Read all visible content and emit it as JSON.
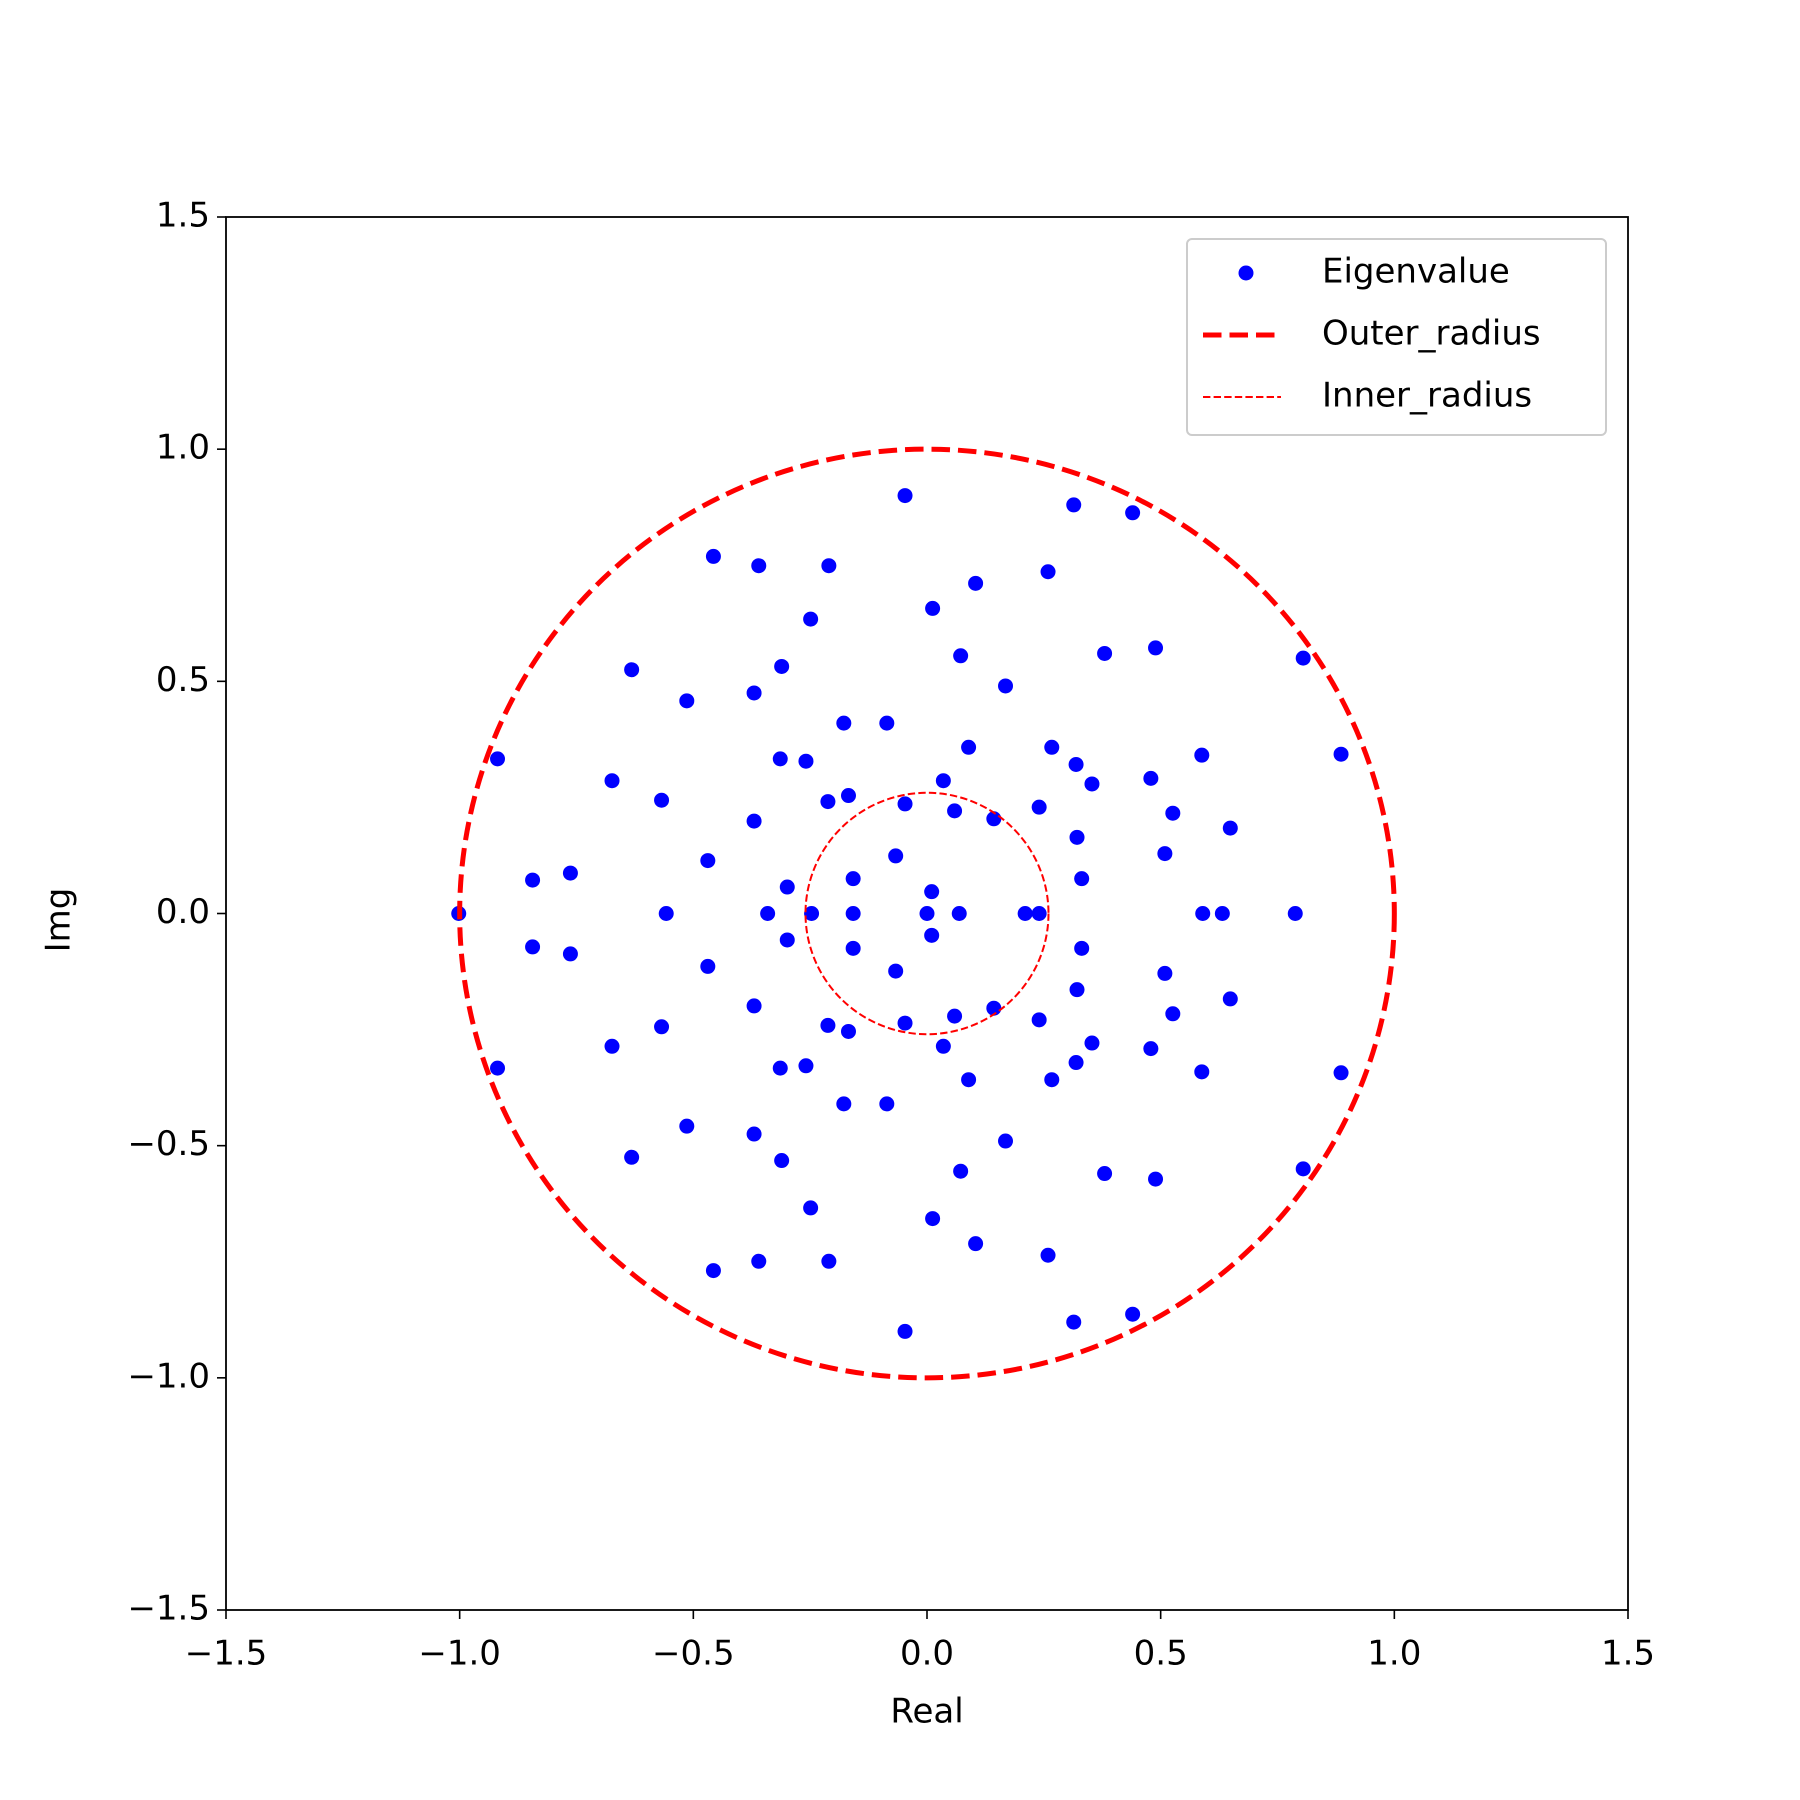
{
  "chart_data": {
    "type": "scatter",
    "xlabel": "Real",
    "ylabel": "Img",
    "xlim": [
      -1.5,
      1.5
    ],
    "ylim": [
      -1.5,
      1.5
    ],
    "xticks": [
      {
        "value": -1.5,
        "label": "−1.5"
      },
      {
        "value": -1.0,
        "label": "−1.0"
      },
      {
        "value": -0.5,
        "label": "−0.5"
      },
      {
        "value": 0,
        "label": "0.0"
      },
      0.5,
      {
        "value": 1,
        "label": "1.0"
      },
      1.5
    ],
    "yticks": [
      {
        "value": -1.5,
        "label": "−1.5"
      },
      {
        "value": -1.0,
        "label": "−1.0"
      },
      {
        "value": -0.5,
        "label": "−0.5"
      },
      {
        "value": 0,
        "label": "0.0"
      },
      0.5,
      {
        "value": 1,
        "label": "1.0"
      },
      1.5
    ],
    "legend": "upper right",
    "series": [
      {
        "name": "Eigenvalue",
        "color": "#0000ff",
        "marker": "dot",
        "x": [
          -0.047,
          0.314,
          0.44,
          -0.457,
          -0.36,
          -0.21,
          0.259,
          0.104,
          0.012,
          -0.249,
          0.072,
          0.38,
          0.489,
          0.805,
          -0.632,
          -0.311,
          0.168,
          -0.514,
          -0.37,
          -0.178,
          -0.086,
          0.089,
          0.886,
          -0.919,
          -0.314,
          -0.259,
          0.267,
          0.319,
          0.588,
          0.353,
          0.479,
          0.035,
          -0.674,
          -0.568,
          -0.212,
          -0.168,
          -0.047,
          0.24,
          0.059,
          0.526,
          0.143,
          0.649,
          -0.37,
          0.321,
          0.509,
          -0.067,
          -0.469,
          -0.763,
          -0.844,
          -0.158,
          0.331,
          -0.299,
          0.01,
          -0.047,
          0.314,
          0.44,
          -0.457,
          -0.36,
          -0.21,
          0.259,
          0.104,
          0.012,
          -0.249,
          0.072,
          0.38,
          0.489,
          0.805,
          -0.632,
          -0.311,
          0.168,
          -0.514,
          -0.37,
          -0.178,
          -0.086,
          0.089,
          0.886,
          -0.919,
          -0.314,
          -0.259,
          0.267,
          0.319,
          0.588,
          0.353,
          0.479,
          0.035,
          -0.674,
          -0.568,
          -0.212,
          -0.168,
          -0.047,
          0.24,
          0.059,
          0.526,
          0.143,
          0.649,
          -0.37,
          0.321,
          0.509,
          -0.067,
          -0.469,
          -0.763,
          -0.844,
          -0.158,
          0.331,
          -0.299,
          0.01,
          -1.002,
          -0.558,
          -0.341,
          -0.247,
          -0.158,
          0,
          0.069,
          0.21,
          0.24,
          0.59,
          0.632,
          0.788
        ],
        "y": [
          0.9,
          0.88,
          0.863,
          0.769,
          0.749,
          0.749,
          0.736,
          0.711,
          0.657,
          0.634,
          0.555,
          0.56,
          0.572,
          0.55,
          0.525,
          0.532,
          0.49,
          0.458,
          0.475,
          0.41,
          0.41,
          0.358,
          0.343,
          0.333,
          0.333,
          0.328,
          0.358,
          0.321,
          0.341,
          0.279,
          0.291,
          0.286,
          0.286,
          0.244,
          0.241,
          0.254,
          0.236,
          0.229,
          0.221,
          0.216,
          0.204,
          0.184,
          0.199,
          0.164,
          0.129,
          0.124,
          0.114,
          0.087,
          0.072,
          0.075,
          0.075,
          0.057,
          0.047,
          -0.9,
          -0.88,
          -0.863,
          -0.769,
          -0.749,
          -0.749,
          -0.736,
          -0.711,
          -0.657,
          -0.634,
          -0.555,
          -0.56,
          -0.572,
          -0.55,
          -0.525,
          -0.532,
          -0.49,
          -0.458,
          -0.475,
          -0.41,
          -0.41,
          -0.358,
          -0.343,
          -0.333,
          -0.333,
          -0.328,
          -0.358,
          -0.321,
          -0.341,
          -0.279,
          -0.291,
          -0.286,
          -0.286,
          -0.244,
          -0.241,
          -0.254,
          -0.236,
          -0.229,
          -0.221,
          -0.216,
          -0.204,
          -0.184,
          -0.199,
          -0.164,
          -0.129,
          -0.124,
          -0.114,
          -0.087,
          -0.072,
          -0.075,
          -0.075,
          -0.057,
          -0.047,
          0,
          0,
          0,
          0,
          0,
          0,
          0,
          0,
          0,
          0,
          0,
          0
        ]
      },
      {
        "name": "Outer_radius",
        "color": "#ff0000",
        "marker": "circle",
        "radius": 1,
        "linestyle": "dashed",
        "linewidth": 5
      },
      {
        "name": "Inner_radius",
        "color": "#ff0000",
        "marker": "circle",
        "radius": 0.26,
        "linestyle": "dashed",
        "linewidth": 2
      }
    ]
  }
}
